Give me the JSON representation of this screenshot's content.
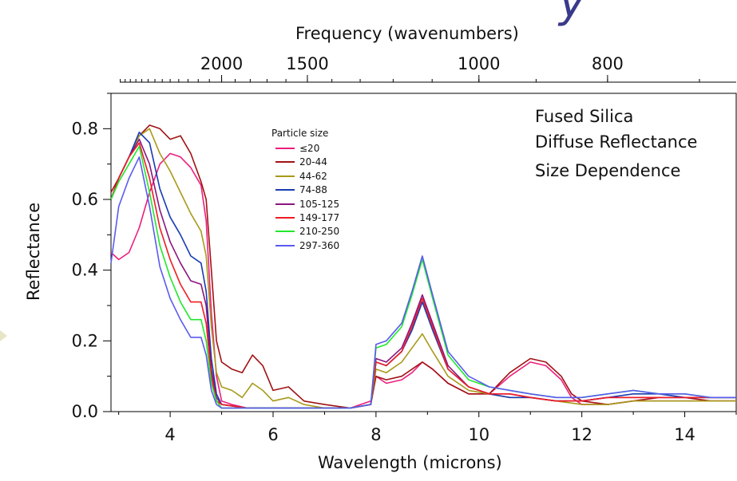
{
  "page": {
    "title_fragment": "y"
  },
  "chart_data": {
    "type": "line",
    "xlabel": "Wavelength (microns)",
    "ylabel": "Reflectance",
    "x2label": "Frequency (wavenumbers)",
    "xlim": [
      2.85,
      15.0
    ],
    "ylim": [
      0.0,
      0.9
    ],
    "xticks": [
      "4",
      "6",
      "8",
      "10",
      "12",
      "14"
    ],
    "yticks": [
      "0.0",
      "0.2",
      "0.4",
      "0.6",
      "0.8"
    ],
    "x2ticks": [
      "2000",
      "1500",
      "1000",
      "800"
    ],
    "legend_title": "Particle size",
    "legend_placement": "center-top",
    "annotations": [
      "Fused Silica",
      "Diffuse Reflectance",
      "Size Dependence"
    ],
    "series": [
      {
        "name": "≤20",
        "color": "#ec1f7c",
        "x": [
          2.85,
          3.0,
          3.2,
          3.4,
          3.6,
          3.8,
          4.0,
          4.2,
          4.4,
          4.6,
          4.7,
          4.8,
          4.9,
          5.0,
          5.2,
          5.5,
          6.0,
          6.5,
          7.0,
          7.5,
          7.9,
          8.0,
          8.2,
          8.5,
          8.7,
          8.9,
          9.1,
          9.4,
          9.8,
          10.2,
          10.6,
          11.0,
          11.3,
          11.6,
          11.8,
          12.0,
          12.5,
          13.0,
          13.5,
          14.0,
          14.5,
          15.0
        ],
        "y": [
          0.45,
          0.43,
          0.45,
          0.52,
          0.62,
          0.7,
          0.73,
          0.72,
          0.69,
          0.64,
          0.54,
          0.28,
          0.1,
          0.03,
          0.02,
          0.01,
          0.01,
          0.01,
          0.01,
          0.01,
          0.03,
          0.1,
          0.08,
          0.09,
          0.11,
          0.14,
          0.12,
          0.08,
          0.05,
          0.05,
          0.1,
          0.14,
          0.13,
          0.09,
          0.04,
          0.02,
          0.02,
          0.03,
          0.03,
          0.03,
          0.03,
          0.03
        ]
      },
      {
        "name": "20-44",
        "color": "#a01214",
        "x": [
          2.85,
          3.0,
          3.2,
          3.4,
          3.6,
          3.8,
          4.0,
          4.2,
          4.4,
          4.6,
          4.7,
          4.8,
          4.9,
          5.0,
          5.2,
          5.4,
          5.6,
          5.8,
          6.0,
          6.3,
          6.6,
          7.0,
          7.5,
          7.9,
          8.0,
          8.2,
          8.5,
          8.7,
          8.9,
          9.1,
          9.4,
          9.8,
          10.2,
          10.6,
          11.0,
          11.3,
          11.6,
          11.8,
          12.0,
          12.5,
          13.0,
          13.5,
          14.0,
          14.5,
          15.0
        ],
        "y": [
          0.62,
          0.66,
          0.72,
          0.78,
          0.81,
          0.8,
          0.77,
          0.78,
          0.73,
          0.65,
          0.6,
          0.4,
          0.2,
          0.14,
          0.12,
          0.11,
          0.16,
          0.13,
          0.06,
          0.07,
          0.03,
          0.02,
          0.01,
          0.02,
          0.1,
          0.09,
          0.1,
          0.12,
          0.14,
          0.12,
          0.08,
          0.05,
          0.05,
          0.11,
          0.15,
          0.14,
          0.1,
          0.05,
          0.03,
          0.02,
          0.03,
          0.04,
          0.04,
          0.03,
          0.03
        ]
      },
      {
        "name": "44-62",
        "color": "#a89a1a",
        "x": [
          2.85,
          3.0,
          3.2,
          3.4,
          3.6,
          3.8,
          4.0,
          4.2,
          4.4,
          4.6,
          4.7,
          4.8,
          4.9,
          5.0,
          5.2,
          5.4,
          5.6,
          5.8,
          6.0,
          6.3,
          6.6,
          7.0,
          7.5,
          7.9,
          8.0,
          8.2,
          8.5,
          8.7,
          8.9,
          9.1,
          9.4,
          9.8,
          10.2,
          10.6,
          11.0,
          11.5,
          12.0,
          12.5,
          13.0,
          13.5,
          14.0,
          14.5,
          15.0
        ],
        "y": [
          0.6,
          0.66,
          0.72,
          0.78,
          0.8,
          0.73,
          0.68,
          0.62,
          0.56,
          0.51,
          0.44,
          0.24,
          0.11,
          0.07,
          0.06,
          0.04,
          0.08,
          0.06,
          0.03,
          0.04,
          0.02,
          0.01,
          0.01,
          0.02,
          0.12,
          0.11,
          0.14,
          0.18,
          0.22,
          0.17,
          0.1,
          0.06,
          0.05,
          0.04,
          0.04,
          0.03,
          0.02,
          0.02,
          0.03,
          0.03,
          0.03,
          0.03,
          0.03
        ]
      },
      {
        "name": "74-88",
        "color": "#173cb2",
        "x": [
          2.85,
          3.0,
          3.2,
          3.4,
          3.6,
          3.8,
          4.0,
          4.2,
          4.4,
          4.6,
          4.7,
          4.8,
          4.9,
          5.0,
          5.5,
          6.0,
          6.5,
          7.0,
          7.5,
          7.9,
          8.0,
          8.2,
          8.5,
          8.7,
          8.9,
          9.1,
          9.4,
          9.8,
          10.2,
          10.6,
          11.0,
          11.5,
          12.0,
          12.5,
          13.0,
          13.5,
          14.0,
          14.5,
          15.0
        ],
        "y": [
          0.6,
          0.66,
          0.72,
          0.79,
          0.76,
          0.63,
          0.55,
          0.5,
          0.44,
          0.42,
          0.34,
          0.15,
          0.05,
          0.02,
          0.01,
          0.01,
          0.01,
          0.01,
          0.01,
          0.02,
          0.14,
          0.13,
          0.17,
          0.23,
          0.31,
          0.23,
          0.12,
          0.07,
          0.05,
          0.04,
          0.04,
          0.03,
          0.03,
          0.04,
          0.05,
          0.05,
          0.04,
          0.04,
          0.04
        ]
      },
      {
        "name": "105-125",
        "color": "#8a157f",
        "x": [
          2.85,
          3.0,
          3.2,
          3.4,
          3.6,
          3.8,
          4.0,
          4.2,
          4.4,
          4.6,
          4.7,
          4.8,
          4.9,
          5.0,
          5.5,
          6.0,
          6.5,
          7.0,
          7.5,
          7.9,
          8.0,
          8.2,
          8.5,
          8.7,
          8.9,
          9.1,
          9.4,
          9.8,
          10.2,
          10.6,
          11.0,
          11.5,
          12.0,
          12.5,
          13.0,
          13.5,
          14.0,
          14.5,
          15.0
        ],
        "y": [
          0.6,
          0.66,
          0.72,
          0.77,
          0.7,
          0.57,
          0.48,
          0.42,
          0.37,
          0.36,
          0.3,
          0.12,
          0.04,
          0.02,
          0.01,
          0.01,
          0.01,
          0.01,
          0.01,
          0.02,
          0.15,
          0.14,
          0.18,
          0.25,
          0.33,
          0.25,
          0.13,
          0.07,
          0.05,
          0.05,
          0.04,
          0.03,
          0.03,
          0.04,
          0.04,
          0.04,
          0.04,
          0.04,
          0.04
        ]
      },
      {
        "name": "149-177",
        "color": "#ee1c24",
        "x": [
          2.85,
          3.0,
          3.2,
          3.4,
          3.6,
          3.8,
          4.0,
          4.2,
          4.4,
          4.6,
          4.7,
          4.8,
          4.9,
          5.0,
          5.5,
          6.0,
          6.5,
          7.0,
          7.5,
          7.9,
          8.0,
          8.2,
          8.5,
          8.7,
          8.9,
          9.1,
          9.4,
          9.8,
          10.2,
          10.6,
          11.0,
          11.5,
          12.0,
          12.5,
          13.0,
          13.5,
          14.0,
          14.5,
          15.0
        ],
        "y": [
          0.6,
          0.66,
          0.72,
          0.76,
          0.66,
          0.52,
          0.43,
          0.36,
          0.31,
          0.31,
          0.25,
          0.1,
          0.03,
          0.02,
          0.01,
          0.01,
          0.01,
          0.01,
          0.01,
          0.02,
          0.14,
          0.13,
          0.17,
          0.24,
          0.32,
          0.24,
          0.12,
          0.07,
          0.05,
          0.05,
          0.04,
          0.03,
          0.03,
          0.04,
          0.04,
          0.04,
          0.04,
          0.04,
          0.04
        ]
      },
      {
        "name": "210-250",
        "color": "#20e82c",
        "x": [
          2.85,
          3.0,
          3.2,
          3.4,
          3.6,
          3.8,
          4.0,
          4.2,
          4.4,
          4.6,
          4.7,
          4.8,
          4.9,
          5.0,
          5.5,
          6.0,
          6.5,
          7.0,
          7.5,
          7.9,
          8.0,
          8.2,
          8.5,
          8.7,
          8.9,
          9.1,
          9.4,
          9.8,
          10.2,
          10.6,
          11.0,
          11.5,
          12.0,
          12.5,
          13.0,
          13.5,
          14.0,
          14.5,
          15.0
        ],
        "y": [
          0.6,
          0.65,
          0.7,
          0.75,
          0.62,
          0.47,
          0.38,
          0.31,
          0.26,
          0.26,
          0.2,
          0.08,
          0.03,
          0.01,
          0.01,
          0.01,
          0.01,
          0.01,
          0.01,
          0.02,
          0.18,
          0.19,
          0.24,
          0.33,
          0.43,
          0.32,
          0.16,
          0.09,
          0.07,
          0.06,
          0.05,
          0.04,
          0.04,
          0.05,
          0.06,
          0.05,
          0.05,
          0.04,
          0.04
        ]
      },
      {
        "name": "297-360",
        "color": "#5a5af0",
        "x": [
          2.85,
          3.0,
          3.2,
          3.4,
          3.6,
          3.8,
          4.0,
          4.2,
          4.4,
          4.6,
          4.7,
          4.8,
          4.9,
          5.0,
          5.5,
          6.0,
          6.5,
          7.0,
          7.5,
          7.9,
          8.0,
          8.2,
          8.5,
          8.7,
          8.9,
          9.1,
          9.4,
          9.8,
          10.2,
          10.6,
          11.0,
          11.5,
          12.0,
          12.5,
          13.0,
          13.5,
          14.0,
          14.5,
          15.0
        ],
        "y": [
          0.42,
          0.58,
          0.66,
          0.72,
          0.58,
          0.41,
          0.32,
          0.26,
          0.21,
          0.21,
          0.16,
          0.06,
          0.02,
          0.01,
          0.01,
          0.01,
          0.01,
          0.01,
          0.01,
          0.02,
          0.19,
          0.2,
          0.25,
          0.34,
          0.44,
          0.33,
          0.17,
          0.1,
          0.07,
          0.06,
          0.05,
          0.04,
          0.04,
          0.05,
          0.06,
          0.05,
          0.05,
          0.04,
          0.04
        ]
      }
    ]
  }
}
